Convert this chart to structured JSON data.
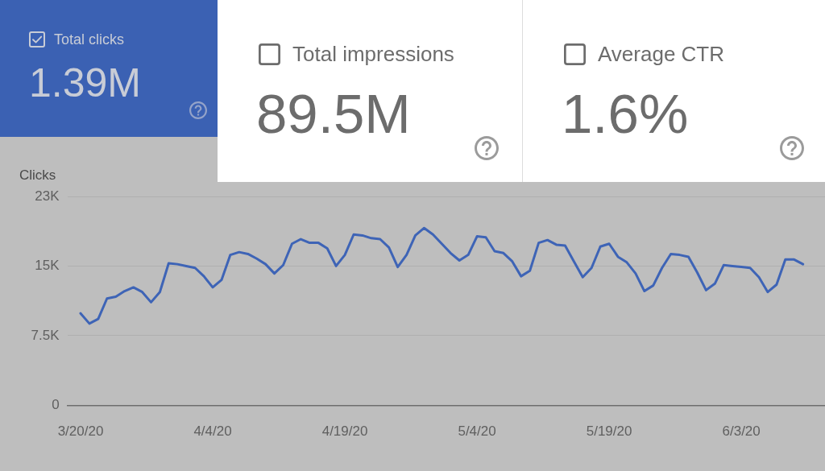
{
  "chart_data": [
    {
      "type": "other",
      "title": "Total clicks",
      "annotations": [
        "1.39M"
      ]
    },
    {
      "type": "other",
      "title": "Total impressions",
      "annotations": [
        "89.5M"
      ]
    },
    {
      "type": "other",
      "title": "Average CTR",
      "annotations": [
        "1.6%"
      ]
    },
    {
      "type": "line",
      "ylabel": "Clicks",
      "x": [
        "2020-03-20",
        "2020-03-21",
        "2020-03-22",
        "2020-03-23",
        "2020-03-24",
        "2020-03-25",
        "2020-03-26",
        "2020-03-27",
        "2020-03-28",
        "2020-03-29",
        "2020-03-30",
        "2020-03-31",
        "2020-04-01",
        "2020-04-02",
        "2020-04-03",
        "2020-04-04",
        "2020-04-05",
        "2020-04-06",
        "2020-04-07",
        "2020-04-08",
        "2020-04-09",
        "2020-04-10",
        "2020-04-11",
        "2020-04-12",
        "2020-04-13",
        "2020-04-14",
        "2020-04-15",
        "2020-04-16",
        "2020-04-17",
        "2020-04-18",
        "2020-04-19",
        "2020-04-20",
        "2020-04-21",
        "2020-04-22",
        "2020-04-23",
        "2020-04-24",
        "2020-04-25",
        "2020-04-26",
        "2020-04-27",
        "2020-04-28",
        "2020-04-29",
        "2020-04-30",
        "2020-05-01",
        "2020-05-02",
        "2020-05-03",
        "2020-05-04",
        "2020-05-05",
        "2020-05-06",
        "2020-05-07",
        "2020-05-08",
        "2020-05-09",
        "2020-05-10",
        "2020-05-11",
        "2020-05-12",
        "2020-05-13",
        "2020-05-14",
        "2020-05-15",
        "2020-05-16",
        "2020-05-17",
        "2020-05-18",
        "2020-05-19",
        "2020-05-20",
        "2020-05-21",
        "2020-05-22",
        "2020-05-23",
        "2020-05-24",
        "2020-05-25",
        "2020-05-26",
        "2020-05-27",
        "2020-05-28",
        "2020-05-29",
        "2020-05-30",
        "2020-05-31",
        "2020-06-01",
        "2020-06-02",
        "2020-06-03",
        "2020-06-04",
        "2020-06-05",
        "2020-06-06",
        "2020-06-07",
        "2020-06-08",
        "2020-06-09",
        "2020-06-10"
      ],
      "series": [
        {
          "color": "#3e64b6",
          "values": [
            9900,
            8800,
            9300,
            11500,
            11700,
            12300,
            12700,
            12200,
            11100,
            12200,
            15300,
            15200,
            15000,
            14800,
            13900,
            12700,
            13500,
            16200,
            16500,
            16300,
            15800,
            15200,
            14200,
            15100,
            17400,
            17900,
            17500,
            17500,
            16900,
            15000,
            16200,
            18400,
            18300,
            18000,
            17900,
            17000,
            14900,
            16200,
            18300,
            19100,
            18400,
            17400,
            16400,
            15600,
            16200,
            18200,
            18100,
            16600,
            16400,
            15500,
            13900,
            14500,
            17500,
            17800,
            17300,
            17200,
            15500,
            13800,
            14800,
            17100,
            17400,
            16000,
            15400,
            14200,
            12300,
            12900,
            14800,
            16300,
            16200,
            16000,
            14300,
            12400,
            13100,
            15100,
            15000,
            14900,
            14800,
            13800,
            12200,
            13000,
            15700,
            15700,
            15200
          ]
        }
      ],
      "xlim": [
        "2020-03-18T12:00",
        "2020-06-12T12:00"
      ],
      "xticks": [
        {
          "value": "2020-03-20",
          "label": "3/20/20"
        },
        {
          "value": "2020-04-04",
          "label": "4/4/20"
        },
        {
          "value": "2020-04-19",
          "label": "4/19/20"
        },
        {
          "value": "2020-05-04",
          "label": "5/4/20"
        },
        {
          "value": "2020-05-19",
          "label": "5/19/20"
        },
        {
          "value": "2020-06-03",
          "label": "6/3/20"
        }
      ],
      "ylim": [
        0,
        22500
      ],
      "yticks": [
        0,
        {
          "value": 7500,
          "label": "7.5K"
        },
        {
          "value": 15000,
          "label": "15K"
        },
        {
          "value": 22500,
          "label": "23K"
        }
      ],
      "grid": "y",
      "legend": false,
      "marker": "none",
      "line_style": "solid"
    }
  ]
}
